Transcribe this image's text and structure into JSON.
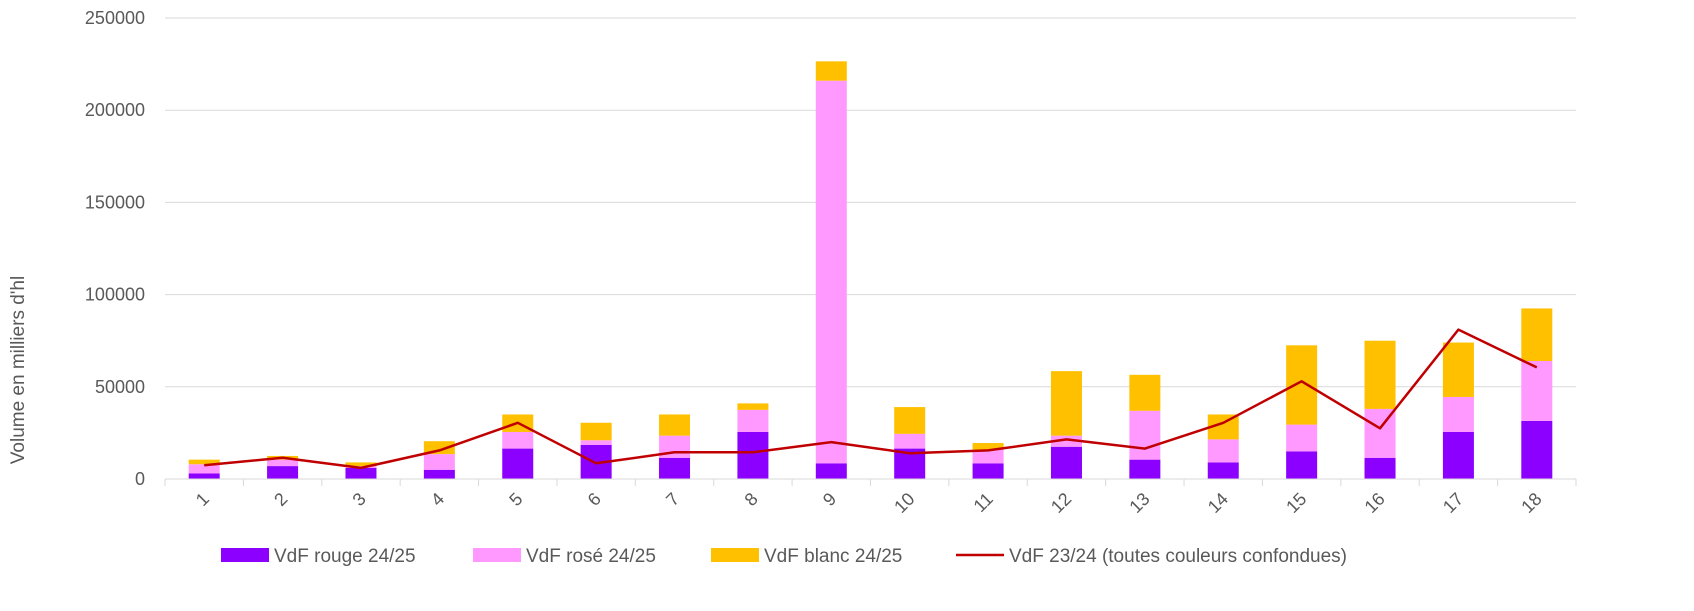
{
  "chart_data": {
    "type": "bar",
    "stacked": true,
    "title": "",
    "xlabel": "",
    "ylabel": "Volume en milliers d'hl",
    "ylim": [
      0,
      250000
    ],
    "yticks": [
      "0",
      "50000",
      "100000",
      "150000",
      "200000",
      "250000"
    ],
    "categories": [
      "1",
      "2",
      "3",
      "4",
      "5",
      "6",
      "7",
      "8",
      "9",
      "10",
      "11",
      "12",
      "13",
      "14",
      "15",
      "16",
      "17",
      "18"
    ],
    "grid": true,
    "legend_position": "bottom",
    "series": [
      {
        "name": "VdF rouge 24/25",
        "kind": "bar",
        "color": "#8B00FF",
        "values": [
          3000,
          7000,
          6000,
          5000,
          16500,
          18500,
          11500,
          25500,
          8500,
          16500,
          8500,
          17500,
          10500,
          9000,
          15000,
          11500,
          25500,
          31500
        ]
      },
      {
        "name": "VdF rosé 24/25",
        "kind": "bar",
        "color": "#FF99FF",
        "values": [
          5000,
          3500,
          1000,
          8500,
          9000,
          2500,
          12000,
          12000,
          207500,
          8000,
          7500,
          6000,
          26500,
          12500,
          14500,
          26500,
          19000,
          32500
        ]
      },
      {
        "name": "VdF blanc 24/25",
        "kind": "bar",
        "color": "#FFC000",
        "values": [
          2500,
          2000,
          2000,
          7000,
          9500,
          9500,
          11500,
          3500,
          10500,
          14500,
          3500,
          35000,
          19500,
          13500,
          43000,
          37000,
          29500,
          28500
        ]
      },
      {
        "name": "VdF 23/24 (toutes couleurs confondues)",
        "kind": "line",
        "color": "#C00000",
        "values": [
          7500,
          11500,
          6000,
          15500,
          30500,
          8500,
          14500,
          14500,
          20000,
          14000,
          15500,
          21500,
          16500,
          30500,
          53000,
          27500,
          81000,
          60500
        ]
      }
    ]
  }
}
